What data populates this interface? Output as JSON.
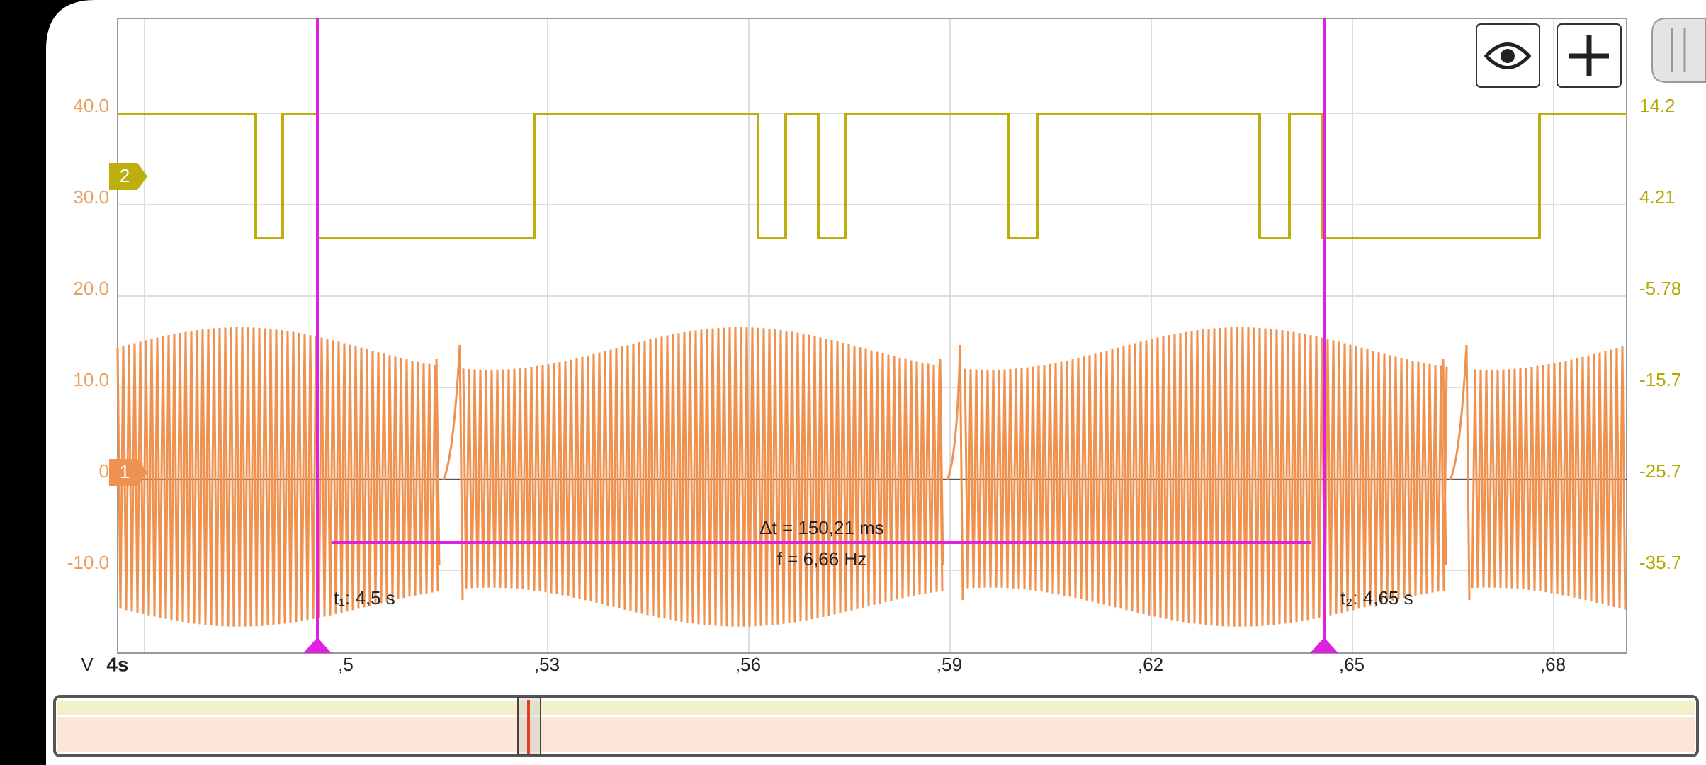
{
  "app": {
    "left_axis_labels": [
      "40.0",
      "30.0",
      "20.0",
      "10.0",
      "0",
      "-10.0"
    ],
    "right_axis_labels": [
      "14.2",
      "4.21",
      "-5.78",
      "-15.7",
      "-25.7",
      "-35.7"
    ],
    "x_axis_unit": "V",
    "x_axis_start": "4s",
    "x_axis_labels": [
      ",5",
      ",53",
      ",56",
      ",59",
      ",62",
      ",65",
      ",68"
    ],
    "channel_markers": [
      "2",
      "1"
    ],
    "cursor_readout": {
      "delta_t": "Δt = 150,21 ms",
      "frequency": "f = 6,66 Hz"
    },
    "cursor_1_label": "t₁: 4,5 s",
    "cursor_2_label": "t₂: 4,65 s"
  }
}
